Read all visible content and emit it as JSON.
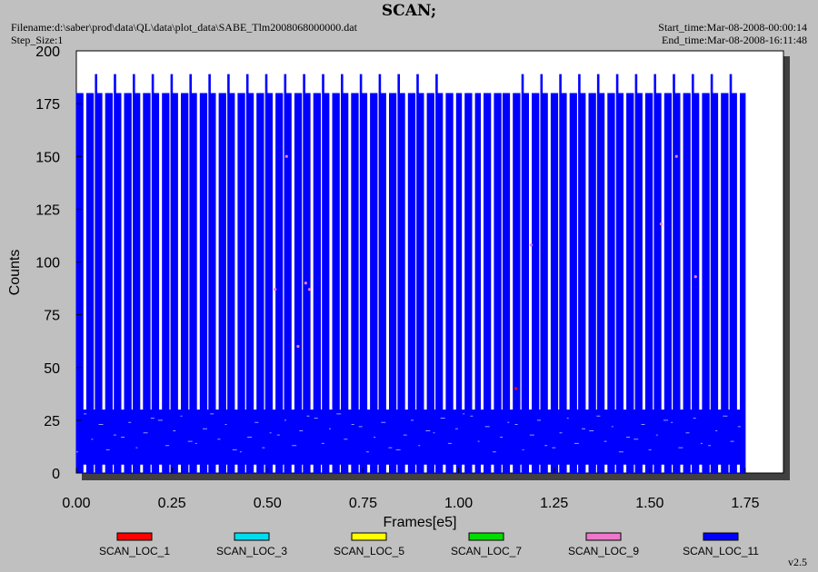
{
  "header": {
    "title": "SCAN;",
    "filename": "Filename:d:\\saber\\prod\\data\\QL\\data\\plot_data\\SABE_Tlm2008068000000.dat",
    "step_size": "Step_Size:1",
    "start_time": "Start_time:Mar-08-2008-00:00:14",
    "end_time": "End_time:Mar-08-2008-16:11:48"
  },
  "version": "v2.5",
  "colors": {
    "background": "#c0c0c0",
    "plot_area": "#ffffff"
  },
  "chart_data": {
    "type": "line",
    "xlabel": "Frames[e5]",
    "ylabel": "Counts",
    "xlim": [
      0,
      1.85
    ],
    "ylim": [
      0,
      200
    ],
    "x_ticks": [
      "0.00",
      "0.25",
      "0.50",
      "0.75",
      "1.00",
      "1.25",
      "1.50",
      "1.75"
    ],
    "y_ticks": [
      "0",
      "25",
      "50",
      "75",
      "100",
      "125",
      "150",
      "175",
      "200"
    ],
    "grid": false,
    "legend_position": "bottom",
    "series": [
      {
        "name": "SCAN_LOC_1",
        "color": "#ff0000"
      },
      {
        "name": "SCAN_LOC_3",
        "color": "#00ddee"
      },
      {
        "name": "SCAN_LOC_5",
        "color": "#ffff00"
      },
      {
        "name": "SCAN_LOC_7",
        "color": "#00dd00"
      },
      {
        "name": "SCAN_LOC_9",
        "color": "#ee77cc"
      },
      {
        "name": "SCAN_LOC_11",
        "color": "#0000ff"
      }
    ],
    "dominant_series": "SCAN_LOC_11",
    "data_extent_x": [
      0.0,
      1.75
    ],
    "low_band_range": [
      10,
      30
    ],
    "spike_peaks": [
      180,
      189
    ],
    "scatter_points": [
      {
        "x": 0.55,
        "y": 150,
        "series": "SCAN_LOC_9"
      },
      {
        "x": 0.58,
        "y": 60,
        "series": "SCAN_LOC_9"
      },
      {
        "x": 0.6,
        "y": 90,
        "series": "SCAN_LOC_9"
      },
      {
        "x": 0.52,
        "y": 87,
        "series": "SCAN_LOC_9"
      },
      {
        "x": 0.61,
        "y": 87,
        "series": "SCAN_LOC_9"
      },
      {
        "x": 1.19,
        "y": 108,
        "series": "SCAN_LOC_9"
      },
      {
        "x": 1.53,
        "y": 118,
        "series": "SCAN_LOC_9"
      },
      {
        "x": 1.57,
        "y": 150,
        "series": "SCAN_LOC_9"
      },
      {
        "x": 1.62,
        "y": 93,
        "series": "SCAN_LOC_9"
      },
      {
        "x": 1.15,
        "y": 40,
        "series": "SCAN_LOC_1"
      }
    ]
  }
}
